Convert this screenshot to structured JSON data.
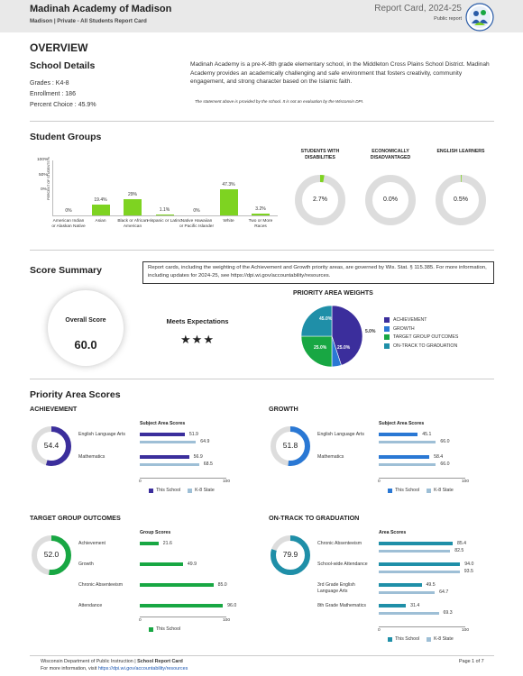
{
  "header": {
    "school_name": "Madinah Academy of Madison",
    "subtitle": "Madison | Private - All Students Report Card",
    "report_title": "Report Card, 2024-25",
    "public_report": "Public report"
  },
  "overview": {
    "heading": "OVERVIEW",
    "details_title": "School Details",
    "grades": "Grades : K4-8",
    "enrollment": "Enrollment : 186",
    "percent_choice": "Percent Choice : 45.9%",
    "description": "Madinah Academy is a pre-K-8th grade elementary school, in the Middleton Cross Plains School District. Madinah Academy provides an academically challenging and safe environment that fosters creativity, community engagement, and strong character based on the Islamic faith.",
    "disclaimer": "The statement above is provided by the school. It is not an evaluation by the Wisconsin DPI."
  },
  "student_groups": {
    "title": "Student Groups",
    "y_axis_label": "PERCENT OF STUDENTS %",
    "y_top": "100%",
    "y_mid": "50%",
    "y_bottom": "0%",
    "rings": [
      {
        "title": "STUDENTS WITH DISABILITIES",
        "value": "2.7%",
        "pct": 2.7
      },
      {
        "title": "ECONOMICALLY DISADVANTAGED",
        "value": "0.0%",
        "pct": 0.0
      },
      {
        "title": "ENGLISH LEARNERS",
        "value": "0.5%",
        "pct": 0.5
      }
    ]
  },
  "chart_data": {
    "type": "bar",
    "categories": [
      "American Indian or Alaskan Native",
      "Asian",
      "Black or African American",
      "Hispanic or Latino",
      "Native Hawaiian or Pacific Islander",
      "White",
      "Two or More Races"
    ],
    "values": [
      0,
      19.4,
      29,
      1.1,
      0,
      47.3,
      3.2
    ],
    "value_labels": [
      "0%",
      "19.4%",
      "29%",
      "1.1%",
      "0%",
      "47.3%",
      "3.2%"
    ],
    "ylim": [
      0,
      100
    ],
    "ylabel": "PERCENT OF STUDENTS %"
  },
  "score_summary": {
    "title": "Score Summary",
    "note": "Report cards, including the weighting of the Achievement and Growth priority areas, are governed by Wis. Stat. § 115.385. For more information, including updates for 2024-25, see https://dpi.wi.gov/accountability/resources.",
    "overall_label": "Overall Score",
    "overall_value": "60.0",
    "rating": "Meets Expectations",
    "stars": "★★★",
    "weights_title": "PRIORITY AREA WEIGHTS",
    "weights": [
      {
        "name": "ACHIEVEMENT",
        "value": 45.0,
        "label": "45.0%",
        "color": "#3b2e9c"
      },
      {
        "name": "GROWTH",
        "value": 5.0,
        "label": "5.0%",
        "color": "#2a78d4"
      },
      {
        "name": "TARGET GROUP OUTCOMES",
        "value": 25.0,
        "label": "25.0%",
        "color": "#18a743"
      },
      {
        "name": "ON-TRACK TO GRADUATION",
        "value": 25.0,
        "label": "25.0%",
        "color": "#1f8fa8"
      }
    ]
  },
  "priority": {
    "title": "Priority Area Scores",
    "legend_school": "This School",
    "legend_state": "K-8 State",
    "subject_title": "Subject Area Scores",
    "group_title": "Group Scores",
    "area_title": "Area Scores",
    "axis_min": "0",
    "axis_max": "100",
    "achievement": {
      "heading": "ACHIEVEMENT",
      "score": "54.4",
      "pct": 54.4,
      "rows": [
        {
          "label": "English Language Arts",
          "school": 51.9,
          "state": 64.9,
          "school_label": "51.9",
          "state_label": "64.9"
        },
        {
          "label": "Mathematics",
          "school": 56.9,
          "state": 68.5,
          "school_label": "56.9",
          "state_label": "68.5"
        }
      ]
    },
    "growth": {
      "heading": "GROWTH",
      "score": "51.8",
      "pct": 51.8,
      "rows": [
        {
          "label": "English Language Arts",
          "school": 45.1,
          "state": 66.0,
          "school_label": "45.1",
          "state_label": "66.0"
        },
        {
          "label": "Mathematics",
          "school": 58.4,
          "state": 66.0,
          "school_label": "58.4",
          "state_label": "66.0"
        }
      ]
    },
    "target": {
      "heading": "TARGET GROUP OUTCOMES",
      "score": "52.0",
      "pct": 52.0,
      "rows": [
        {
          "label": "Achievement",
          "school": 21.6,
          "school_label": "21.6"
        },
        {
          "label": "Growth",
          "school": 49.9,
          "school_label": "49.9"
        },
        {
          "label": "Chronic Absenteeism",
          "school": 85.0,
          "school_label": "85.0"
        },
        {
          "label": "Attendance",
          "school": 96.0,
          "school_label": "96.0"
        }
      ]
    },
    "ontrack": {
      "heading": "ON-TRACK TO GRADUATION",
      "score": "79.9",
      "pct": 79.9,
      "rows": [
        {
          "label": "Chronic Absenteeism",
          "school": 85.4,
          "state": 82.5,
          "school_label": "85.4",
          "state_label": "82.5"
        },
        {
          "label": "School-wide Attendance",
          "school": 94.0,
          "state": 93.5,
          "school_label": "94.0",
          "state_label": "93.5"
        },
        {
          "label": "3rd Grade English Language Arts",
          "school": 49.5,
          "state": 64.7,
          "school_label": "49.5",
          "state_label": "64.7"
        },
        {
          "label": "8th Grade Mathematics",
          "school": 31.4,
          "state": 69.3,
          "school_label": "31.4",
          "state_label": "69.3"
        }
      ]
    }
  },
  "footer": {
    "line1_a": "Wisconsin Department of Public Instruction | ",
    "line1_b": "School Report Card",
    "line2_a": "For more information, visit ",
    "line2_link": "https://dpi.wi.gov/accountability/resources",
    "page": "Page 1 of 7"
  }
}
